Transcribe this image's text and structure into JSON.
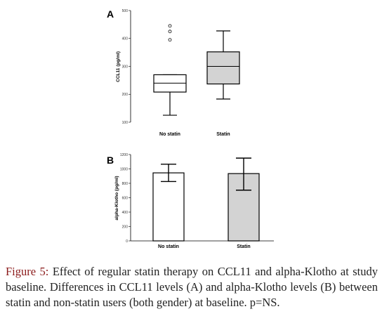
{
  "chart_data": [
    {
      "panel": "A",
      "type": "box",
      "ylabel": "CCL11 (pg/ml)",
      "ylim": [
        100,
        500
      ],
      "yticks": [
        "100",
        "200",
        "300",
        "400",
        "500"
      ],
      "categories": [
        "No statin",
        "Statin"
      ],
      "boxes": [
        {
          "whisker_low": 125,
          "q1": 208,
          "median": 240,
          "q3": 270,
          "whisker_high": 270,
          "outliers": [
            395,
            425,
            445
          ],
          "fill": "#ffffff"
        },
        {
          "whisker_low": 183,
          "q1": 237,
          "median": 300,
          "q3": 352,
          "whisker_high": 427,
          "outliers": [],
          "fill": "#d3d3d3"
        }
      ]
    },
    {
      "panel": "B",
      "type": "bar",
      "ylabel": "alpha-Klotho (pg/ml)",
      "ylim": [
        0,
        1200
      ],
      "yticks": [
        "0",
        "200",
        "400",
        "600",
        "800",
        "1000",
        "1200"
      ],
      "categories": [
        "No statin",
        "Statin"
      ],
      "values": [
        945,
        935
      ],
      "error_low": [
        825,
        705
      ],
      "error_high": [
        1065,
        1150
      ],
      "fills": [
        "#ffffff",
        "#d3d3d3"
      ]
    }
  ],
  "caption": {
    "label": "Figure 5:",
    "text": " Effect of regular statin therapy on CCL11 and alpha-Klotho at study baseline. Differences in CCL11 levels (A) and alpha-Klotho levels (B) between statin and non-statin users (both gender) at baseline. p=NS."
  }
}
